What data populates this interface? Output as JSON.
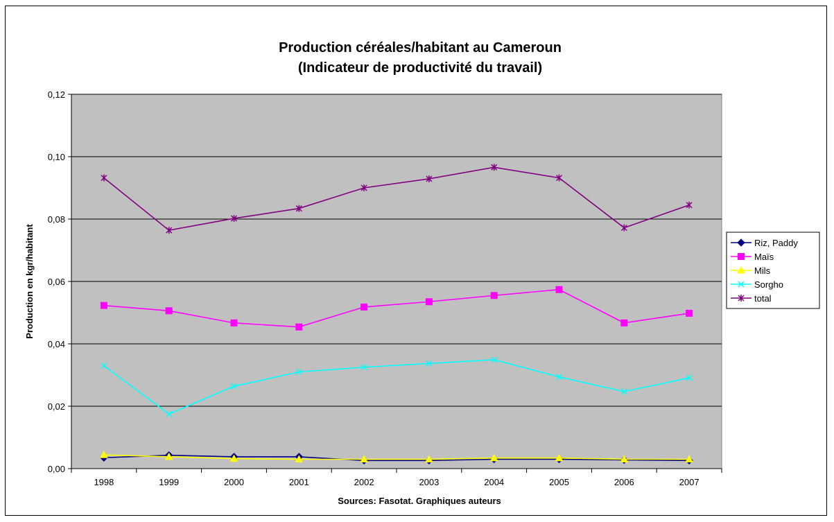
{
  "chart_data": {
    "type": "line",
    "title_line1": "Production céréales/habitant au Cameroun",
    "title_line2": "(Indicateur de productivité du travail)",
    "xlabel": "Sources: Fasotat. Graphiques auteurs",
    "ylabel": "Production en kgr/habitant",
    "categories": [
      "1998",
      "1999",
      "2000",
      "2001",
      "2002",
      "2003",
      "2004",
      "2005",
      "2006",
      "2007"
    ],
    "ylim": [
      0,
      0.12
    ],
    "yticks": [
      0,
      0.02,
      0.04,
      0.06,
      0.08,
      0.1,
      0.12
    ],
    "ytick_labels": [
      "0,00",
      "0,02",
      "0,04",
      "0,06",
      "0,08",
      "0,10",
      "0,12"
    ],
    "grid": true,
    "legend_position": "right",
    "plot_background": "#c0c0c0",
    "series": [
      {
        "name": "Riz, Paddy",
        "color": "#000080",
        "marker": "diamond",
        "values": [
          0.0035,
          0.0043,
          0.0038,
          0.0038,
          0.0026,
          0.0026,
          0.003,
          0.003,
          0.0028,
          0.0026
        ]
      },
      {
        "name": "Maïs",
        "color": "#ff00ff",
        "marker": "square",
        "values": [
          0.0523,
          0.0506,
          0.0467,
          0.0454,
          0.0518,
          0.0535,
          0.0555,
          0.0574,
          0.0467,
          0.0498
        ]
      },
      {
        "name": "Mils",
        "color": "#ffff00",
        "marker": "triangle",
        "values": [
          0.0044,
          0.0038,
          0.0032,
          0.003,
          0.003,
          0.003,
          0.0034,
          0.0034,
          0.003,
          0.003
        ]
      },
      {
        "name": "Sorgho",
        "color": "#00ffff",
        "marker": "x",
        "values": [
          0.033,
          0.0175,
          0.0264,
          0.031,
          0.0325,
          0.0337,
          0.0349,
          0.0294,
          0.0247,
          0.0291
        ]
      },
      {
        "name": "total",
        "color": "#800080",
        "marker": "asterisk",
        "values": [
          0.0932,
          0.0764,
          0.0802,
          0.0834,
          0.09,
          0.0929,
          0.0966,
          0.0932,
          0.0772,
          0.0845
        ]
      }
    ]
  }
}
